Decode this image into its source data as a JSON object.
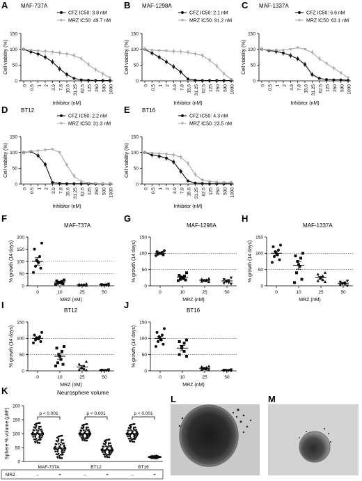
{
  "chart_data": [
    {
      "panel": "A",
      "type": "line",
      "title": "MAF-737A",
      "xlabel": "Inhibitor (nM)",
      "ylabel": "Cell viability (%)",
      "x": [
        "0",
        "0.5",
        "1",
        "2",
        "3.9",
        "7.8",
        "15.6",
        "31.25",
        "62.5",
        "125",
        "250",
        "500",
        "1000"
      ],
      "ylim": [
        0,
        150
      ],
      "yticks": [
        0,
        50,
        100,
        150
      ],
      "legend": "top-right",
      "series": [
        {
          "name": "CFZ IC50: 3.8 nM",
          "color": "#111111",
          "values": [
            100,
            92,
            85,
            75,
            60,
            38,
            20,
            8,
            3,
            2,
            1,
            1,
            1
          ]
        },
        {
          "name": "MRZ IC50: 49.7 nM",
          "color": "#a8a8a8",
          "values": [
            100,
            97,
            95,
            93,
            91,
            88,
            85,
            80,
            70,
            52,
            35,
            22,
            10
          ]
        }
      ]
    },
    {
      "panel": "B",
      "type": "line",
      "title": "MAF-1298A",
      "xlabel": "Inhibitor (nM)",
      "ylabel": "Cell viability (%)",
      "x": [
        "0",
        "0.5",
        "1",
        "2",
        "3.9",
        "7.8",
        "15.6",
        "31.25",
        "62.5",
        "125",
        "250",
        "500",
        "1000"
      ],
      "ylim": [
        0,
        150
      ],
      "yticks": [
        0,
        50,
        100,
        150
      ],
      "legend": "top-right",
      "series": [
        {
          "name": "CFZ IC50: 2.1 nM",
          "color": "#111111",
          "values": [
            100,
            88,
            75,
            60,
            45,
            28,
            6,
            2,
            1,
            1,
            1,
            1,
            1
          ]
        },
        {
          "name": "MRZ IC50: 91.2 nM",
          "color": "#a8a8a8",
          "values": [
            100,
            97,
            96,
            95,
            93,
            92,
            90,
            85,
            80,
            65,
            47,
            22,
            5
          ]
        }
      ]
    },
    {
      "panel": "C",
      "type": "line",
      "title": "MAF-1337A",
      "xlabel": "Inhibitor (nM)",
      "ylabel": "Cell viability (%)",
      "x": [
        "0",
        "0.5",
        "1",
        "2",
        "3.9",
        "7.8",
        "15.6",
        "31.25",
        "62.5",
        "125",
        "250",
        "500",
        "1000"
      ],
      "ylim": [
        0,
        150
      ],
      "yticks": [
        0,
        50,
        100,
        150
      ],
      "legend": "top-right",
      "series": [
        {
          "name": "CFZ IC50: 6.6 nM",
          "color": "#111111",
          "values": [
            100,
            96,
            93,
            88,
            80,
            70,
            52,
            20,
            8,
            4,
            3,
            3,
            2
          ]
        },
        {
          "name": "MRZ IC50: 63.1 nM",
          "color": "#a8a8a8",
          "values": [
            100,
            98,
            97,
            97,
            100,
            105,
            100,
            90,
            70,
            55,
            40,
            25,
            10
          ]
        }
      ]
    },
    {
      "panel": "D",
      "type": "line",
      "title": "BT12",
      "xlabel": "Inhibitor (nM)",
      "ylabel": "Cell viability (%)",
      "x": [
        "0",
        "0.5",
        "1",
        "2",
        "3.9",
        "7.8",
        "15.6",
        "31.25",
        "62.5",
        "125",
        "250",
        "500",
        "1000"
      ],
      "ylim": [
        0,
        150
      ],
      "yticks": [
        0,
        50,
        100,
        150
      ],
      "legend": "top-right",
      "series": [
        {
          "name": "CFZ IC50: 2.2 nM",
          "color": "#111111",
          "values": [
            100,
            103,
            90,
            62,
            5,
            2,
            1,
            1,
            1,
            1,
            1,
            1,
            1
          ]
        },
        {
          "name": "MRZ IC50: 31.3 nM",
          "color": "#a8a8a8",
          "values": [
            100,
            104,
            105,
            108,
            110,
            100,
            60,
            25,
            8,
            3,
            2,
            1,
            1
          ]
        }
      ]
    },
    {
      "panel": "E",
      "type": "line",
      "title": "BT16",
      "xlabel": "Inhibitor (nM)",
      "ylabel": "Cell viability (%)",
      "x": [
        "0",
        "0.5",
        "1",
        "2",
        "3.9",
        "7.8",
        "15.6",
        "31.25",
        "62.5",
        "125",
        "250",
        "500",
        "1000"
      ],
      "ylim": [
        0,
        150
      ],
      "yticks": [
        0,
        50,
        100,
        150
      ],
      "legend": "top-right",
      "series": [
        {
          "name": "CFZ IC50: 4.3 nM",
          "color": "#111111",
          "values": [
            100,
            92,
            88,
            82,
            70,
            40,
            10,
            3,
            2,
            1,
            1,
            1,
            1
          ]
        },
        {
          "name": "MRZ IC50: 23.5 nM",
          "color": "#a8a8a8",
          "values": [
            100,
            98,
            96,
            95,
            92,
            85,
            65,
            30,
            12,
            8,
            6,
            5,
            5
          ]
        }
      ]
    },
    {
      "panel": "F",
      "type": "scatter",
      "title": "MAF-737A",
      "xlabel": "MRZ (nM)",
      "ylabel": "% growth (14 days)",
      "categories": [
        "0",
        "10",
        "25",
        "50"
      ],
      "ylim": [
        0,
        200
      ],
      "yticks": [
        0,
        50,
        100,
        150,
        200
      ],
      "ref_lines": [
        100,
        50
      ],
      "groups": [
        {
          "marker": "circle",
          "mean": 100,
          "sem": 15,
          "values": [
            175,
            150,
            120,
            105,
            100,
            95,
            80,
            72,
            55
          ]
        },
        {
          "marker": "square",
          "mean": 15,
          "sem": 3,
          "values": [
            24,
            20,
            18,
            15,
            14,
            12,
            10,
            8,
            6
          ]
        },
        {
          "marker": "triangle",
          "mean": 4,
          "sem": 1,
          "values": [
            8,
            6,
            5,
            4,
            3,
            2,
            1,
            1
          ]
        },
        {
          "marker": "triangle-down",
          "mean": 4,
          "sem": 1,
          "values": [
            8,
            6,
            5,
            4,
            3,
            2,
            1,
            0
          ]
        }
      ]
    },
    {
      "panel": "G",
      "type": "scatter",
      "title": "MAF-1298A",
      "xlabel": "MRZ (nM)",
      "ylabel": "% growth (14 days)",
      "categories": [
        "0",
        "10",
        "25",
        "50"
      ],
      "ylim": [
        0,
        150
      ],
      "yticks": [
        0,
        50,
        100,
        150
      ],
      "ref_lines": [
        100,
        50
      ],
      "groups": [
        {
          "marker": "circle",
          "mean": 100,
          "sem": 2,
          "values": [
            108,
            105,
            103,
            101,
            100,
            99,
            97,
            95,
            93
          ]
        },
        {
          "marker": "square",
          "mean": 26,
          "sem": 3,
          "values": [
            40,
            32,
            30,
            27,
            25,
            22,
            20,
            18,
            16
          ]
        },
        {
          "marker": "triangle",
          "mean": 17,
          "sem": 2,
          "values": [
            22,
            20,
            18,
            17,
            16,
            15,
            13,
            12
          ]
        },
        {
          "marker": "triangle-down",
          "mean": 15,
          "sem": 3,
          "values": [
            25,
            20,
            17,
            15,
            13,
            10,
            8,
            6
          ]
        }
      ]
    },
    {
      "panel": "H",
      "type": "scatter",
      "title": "MAF-1337A",
      "xlabel": "MRZ (nM)",
      "ylabel": "% growth (14 days)",
      "categories": [
        "0",
        "10",
        "25",
        "50"
      ],
      "ylim": [
        0,
        150
      ],
      "yticks": [
        0,
        50,
        100,
        150
      ],
      "ref_lines": [
        100,
        50
      ],
      "groups": [
        {
          "marker": "circle",
          "mean": 100,
          "sem": 6,
          "values": [
            125,
            120,
            110,
            105,
            100,
            95,
            90,
            80,
            72
          ]
        },
        {
          "marker": "square",
          "mean": 63,
          "sem": 12,
          "values": [
            100,
            92,
            85,
            75,
            65,
            60,
            40,
            20,
            10
          ]
        },
        {
          "marker": "triangle",
          "mean": 25,
          "sem": 4,
          "values": [
            40,
            35,
            30,
            25,
            22,
            18,
            15,
            12
          ]
        },
        {
          "marker": "triangle-down",
          "mean": 8,
          "sem": 2,
          "values": [
            15,
            12,
            10,
            8,
            6,
            4,
            2,
            0
          ]
        }
      ]
    },
    {
      "panel": "I",
      "type": "scatter",
      "title": "BT12",
      "xlabel": "MRZ (nM)",
      "ylabel": "% growth (14 days)",
      "categories": [
        "0",
        "10",
        "25",
        "50"
      ],
      "ylim": [
        0,
        150
      ],
      "yticks": [
        0,
        50,
        100,
        150
      ],
      "ref_lines": [
        100,
        50
      ],
      "groups": [
        {
          "marker": "circle",
          "mean": 100,
          "sem": 4,
          "values": [
            118,
            110,
            105,
            102,
            100,
            98,
            95,
            90,
            86
          ]
        },
        {
          "marker": "square",
          "mean": 45,
          "sem": 9,
          "values": [
            75,
            70,
            60,
            50,
            45,
            35,
            25,
            20,
            15
          ]
        },
        {
          "marker": "triangle",
          "mean": 12,
          "sem": 4,
          "values": [
            28,
            20,
            15,
            10,
            8,
            5,
            3,
            2
          ]
        },
        {
          "marker": "triangle-down",
          "mean": 2,
          "sem": 1,
          "values": [
            4,
            3,
            2,
            2,
            1,
            1,
            0,
            0
          ]
        }
      ]
    },
    {
      "panel": "J",
      "type": "scatter",
      "title": "BT16",
      "xlabel": "MRZ (nM)",
      "ylabel": "% growth (14 days)",
      "categories": [
        "0",
        "10",
        "25",
        "50"
      ],
      "ylim": [
        0,
        150
      ],
      "yticks": [
        0,
        50,
        100,
        150
      ],
      "ref_lines": [
        100,
        50
      ],
      "groups": [
        {
          "marker": "circle",
          "mean": 100,
          "sem": 6,
          "values": [
            130,
            118,
            110,
            105,
            100,
            95,
            90,
            82,
            75
          ]
        },
        {
          "marker": "square",
          "mean": 70,
          "sem": 8,
          "values": [
            95,
            90,
            85,
            75,
            70,
            60,
            50,
            45
          ]
        },
        {
          "marker": "triangle",
          "mean": 8,
          "sem": 2,
          "values": [
            14,
            12,
            10,
            8,
            6,
            5,
            4,
            3
          ]
        },
        {
          "marker": "triangle-down",
          "mean": 2,
          "sem": 1,
          "values": [
            4,
            3,
            2,
            2,
            1,
            1,
            0,
            0
          ]
        }
      ]
    },
    {
      "panel": "K",
      "type": "scatter",
      "title": "Neurosphere volume",
      "ylabel": "Sphere % volume (μM³)",
      "ylim": [
        0,
        200
      ],
      "yticks": [
        0,
        50,
        100,
        150,
        200
      ],
      "categories": [
        "MAF-737A",
        "BT12",
        "BT16"
      ],
      "treatment_label": "MRZ",
      "treatment": [
        "–",
        "+",
        "–",
        "+",
        "–",
        "+"
      ],
      "significance": [
        "p < 0.001",
        "p < 0.001",
        "p < 0.001"
      ],
      "groups": [
        {
          "mean": 100,
          "min": 60,
          "max": 145,
          "n": 60
        },
        {
          "mean": 48,
          "min": 5,
          "max": 100,
          "n": 60
        },
        {
          "mean": 100,
          "min": 70,
          "max": 140,
          "n": 60
        },
        {
          "mean": 42,
          "min": 10,
          "max": 85,
          "n": 60
        },
        {
          "mean": 100,
          "min": 65,
          "max": 140,
          "n": 60
        },
        {
          "mean": 16,
          "min": 10,
          "max": 22,
          "n": 40
        }
      ]
    }
  ],
  "panels": {
    "A": "A",
    "B": "B",
    "C": "C",
    "D": "D",
    "E": "E",
    "F": "F",
    "G": "G",
    "H": "H",
    "I": "I",
    "J": "J",
    "K": "K",
    "L": "L",
    "M": "M"
  },
  "images": [
    {
      "panel": "L",
      "subject": "large-neurosphere"
    },
    {
      "panel": "M",
      "subject": "small-neurosphere"
    }
  ]
}
